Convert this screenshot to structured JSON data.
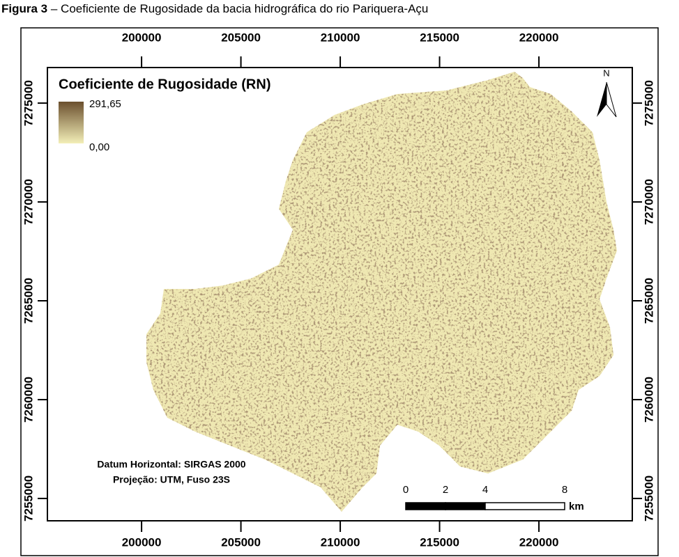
{
  "caption": {
    "label": "Figura 3",
    "text": "– Coeficiente de Rugosidade da bacia hidrográfica do rio Pariquera-Açu"
  },
  "map": {
    "xlim": [
      195260,
      224700
    ],
    "ylim": [
      7253870,
      7276800
    ],
    "xticks": [
      200000,
      205000,
      210000,
      215000,
      220000
    ],
    "yticks": [
      7255000,
      7260000,
      7265000,
      7270000,
      7275000
    ],
    "legend": {
      "title": "Coeficiente de Rugosidade (RN)",
      "max": {
        "value": 291.65,
        "label": "291,65"
      },
      "min": {
        "value": 0,
        "label": "0,00"
      }
    },
    "north": "N",
    "datum": [
      "Datum Horizontal: SIRGAS 2000",
      "Projeção: UTM, Fuso 23S"
    ],
    "scale_bar": {
      "ticks": [
        0,
        2,
        4,
        8
      ],
      "unit": "km"
    }
  }
}
